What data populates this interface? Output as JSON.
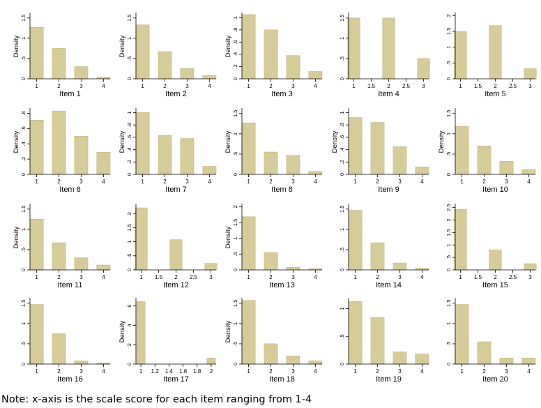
{
  "note": "Note: x-axis is the scale score for each item ranging from 1-4",
  "colors": {
    "bar": "#d6cc9a",
    "bar_stroke": "#c2b781",
    "axis": "#000000"
  },
  "chart_data": [
    {
      "type": "bar",
      "title": "Item 1",
      "xlabel": "Item 1",
      "ylabel": "Density",
      "xlim": [
        0.7,
        4.3
      ],
      "x_ticks": [
        1,
        2,
        3,
        4
      ],
      "x_tick_labels": [
        "1",
        "2",
        "3",
        "4"
      ],
      "ylim": [
        0,
        1.6
      ],
      "y_ticks": [
        0,
        0.5,
        1,
        1.5
      ],
      "y_tick_labels": [
        "0",
        ".5",
        "1",
        "1.5"
      ],
      "bar_width": 0.6,
      "x": [
        1,
        2,
        3,
        4
      ],
      "values": [
        1.27,
        0.75,
        0.3,
        0.04
      ]
    },
    {
      "type": "bar",
      "title": "Item 2",
      "xlabel": "Item 2",
      "ylabel": "Density",
      "xlim": [
        0.7,
        4.3
      ],
      "x_ticks": [
        1,
        2,
        3,
        4
      ],
      "x_tick_labels": [
        "1",
        "2",
        "3",
        "4"
      ],
      "ylim": [
        0,
        1.6
      ],
      "y_ticks": [
        0,
        0.5,
        1,
        1.5
      ],
      "y_tick_labels": [
        "0",
        ".5",
        "1",
        "1.5"
      ],
      "bar_width": 0.6,
      "x": [
        1,
        2,
        3,
        4
      ],
      "values": [
        1.33,
        0.67,
        0.26,
        0.08
      ]
    },
    {
      "type": "bar",
      "title": "Item 3",
      "xlabel": "Item 3",
      "ylabel": "Density",
      "xlim": [
        0.7,
        4.3
      ],
      "x_ticks": [
        1,
        2,
        3,
        4
      ],
      "x_tick_labels": [
        "1",
        "2",
        "3",
        "4"
      ],
      "ylim": [
        0,
        1.06
      ],
      "y_ticks": [
        0,
        0.2,
        0.4,
        0.6,
        0.8,
        1
      ],
      "y_tick_labels": [
        "0",
        ".2",
        ".4",
        ".6",
        ".8",
        "1"
      ],
      "bar_width": 0.6,
      "x": [
        1,
        2,
        3,
        4
      ],
      "values": [
        1.05,
        0.8,
        0.38,
        0.12
      ]
    },
    {
      "type": "bar",
      "title": "Item 4",
      "xlabel": "Item 4",
      "ylabel": "",
      "xlim": [
        0.85,
        3.15
      ],
      "x_ticks": [
        1,
        1.5,
        2,
        2.5,
        3
      ],
      "x_tick_labels": [
        "1",
        "1.5",
        "2",
        "2.5",
        "3"
      ],
      "ylim": [
        0,
        1.6
      ],
      "y_ticks": [
        0,
        0.5,
        1,
        1.5
      ],
      "y_tick_labels": [
        "0",
        ".5",
        "1",
        "1.5"
      ],
      "bar_width": 0.35,
      "x": [
        1,
        2,
        3
      ],
      "values": [
        1.5,
        1.5,
        0.5
      ]
    },
    {
      "type": "bar",
      "title": "Item 5",
      "xlabel": "Item 5",
      "ylabel": "",
      "xlim": [
        0.85,
        3.15
      ],
      "x_ticks": [
        1,
        1.5,
        2,
        2.5,
        3
      ],
      "x_tick_labels": [
        "1",
        "1.5",
        "2",
        "2.5",
        "3"
      ],
      "ylim": [
        0,
        2.05
      ],
      "y_ticks": [
        0,
        0.5,
        1,
        1.5,
        2
      ],
      "y_tick_labels": [
        "0",
        ".5",
        "1",
        "1.5",
        "2"
      ],
      "bar_width": 0.35,
      "x": [
        1,
        2,
        3
      ],
      "values": [
        1.5,
        1.68,
        0.32
      ]
    },
    {
      "type": "bar",
      "title": "Item 6",
      "xlabel": "Item 6",
      "ylabel": "Density",
      "xlim": [
        0.7,
        4.3
      ],
      "x_ticks": [
        1,
        2,
        3,
        4
      ],
      "x_tick_labels": [
        "1",
        "2",
        "3",
        "4"
      ],
      "ylim": [
        0,
        0.85
      ],
      "y_ticks": [
        0,
        0.2,
        0.4,
        0.6,
        0.8
      ],
      "y_tick_labels": [
        "0",
        ".2",
        ".4",
        ".6",
        ".8"
      ],
      "bar_width": 0.6,
      "x": [
        1,
        2,
        3,
        4
      ],
      "values": [
        0.71,
        0.83,
        0.5,
        0.29
      ]
    },
    {
      "type": "bar",
      "title": "Item 7",
      "xlabel": "Item 7",
      "ylabel": "Density",
      "xlim": [
        0.7,
        4.3
      ],
      "x_ticks": [
        1,
        2,
        3,
        4
      ],
      "x_tick_labels": [
        "1",
        "2",
        "3",
        "4"
      ],
      "ylim": [
        0,
        1.05
      ],
      "y_ticks": [
        0,
        0.2,
        0.4,
        0.6,
        0.8,
        1
      ],
      "y_tick_labels": [
        "0",
        ".2",
        ".4",
        ".6",
        ".8",
        "1"
      ],
      "bar_width": 0.6,
      "x": [
        1,
        2,
        3,
        4
      ],
      "values": [
        1,
        0.63,
        0.58,
        0.13
      ]
    },
    {
      "type": "bar",
      "title": "Item 8",
      "xlabel": "Item 8",
      "ylabel": "Density",
      "xlim": [
        0.7,
        4.3
      ],
      "x_ticks": [
        1,
        2,
        3,
        4
      ],
      "x_tick_labels": [
        "1",
        "2",
        "3",
        "4"
      ],
      "ylim": [
        0,
        1.6
      ],
      "y_ticks": [
        0,
        0.5,
        1,
        1.5
      ],
      "y_tick_labels": [
        "0",
        ".5",
        "1",
        "1.5"
      ],
      "bar_width": 0.6,
      "x": [
        1,
        2,
        3,
        4
      ],
      "values": [
        1.27,
        0.55,
        0.47,
        0.07
      ]
    },
    {
      "type": "bar",
      "title": "Item 9",
      "xlabel": "Item 9",
      "ylabel": "Density",
      "xlim": [
        0.7,
        4.3
      ],
      "x_ticks": [
        1,
        2,
        3,
        4
      ],
      "x_tick_labels": [
        "1",
        "2",
        "3",
        "4"
      ],
      "ylim": [
        0,
        1.05
      ],
      "y_ticks": [
        0,
        0.2,
        0.4,
        0.6,
        0.8,
        1
      ],
      "y_tick_labels": [
        "0",
        ".2",
        ".4",
        ".6",
        ".8",
        "1"
      ],
      "bar_width": 0.6,
      "x": [
        1,
        2,
        3,
        4
      ],
      "values": [
        0.92,
        0.84,
        0.45,
        0.12
      ]
    },
    {
      "type": "bar",
      "title": "Item 10",
      "xlabel": "Item 10",
      "ylabel": "Density",
      "xlim": [
        0.7,
        4.3
      ],
      "x_ticks": [
        1,
        2,
        3,
        4
      ],
      "x_tick_labels": [
        "1",
        "2",
        "3",
        "4"
      ],
      "ylim": [
        0,
        1.6
      ],
      "y_ticks": [
        0,
        0.5,
        1,
        1.5
      ],
      "y_tick_labels": [
        "0",
        ".5",
        "1",
        "1.5"
      ],
      "bar_width": 0.6,
      "x": [
        1,
        2,
        3,
        4
      ],
      "values": [
        1.18,
        0.7,
        0.32,
        0.12
      ]
    },
    {
      "type": "bar",
      "title": "Item 11",
      "xlabel": "Item 11",
      "ylabel": "Density",
      "xlim": [
        0.7,
        4.3
      ],
      "x_ticks": [
        1,
        2,
        3,
        4
      ],
      "x_tick_labels": [
        "1",
        "2",
        "3",
        "4"
      ],
      "ylim": [
        0,
        1.6
      ],
      "y_ticks": [
        0,
        0.5,
        1,
        1.5
      ],
      "y_tick_labels": [
        "0",
        ".5",
        "1",
        "1.5"
      ],
      "bar_width": 0.6,
      "x": [
        1,
        2,
        3,
        4
      ],
      "values": [
        1.25,
        0.67,
        0.3,
        0.12
      ]
    },
    {
      "type": "bar",
      "title": "Item 12",
      "xlabel": "Item 12",
      "ylabel": "",
      "xlim": [
        0.85,
        3.15
      ],
      "x_ticks": [
        1,
        1.5,
        2,
        2.5,
        3
      ],
      "x_tick_labels": [
        "1",
        "1.5",
        "2",
        "2.5",
        "3"
      ],
      "ylim": [
        0,
        2.3
      ],
      "y_ticks": [
        0,
        0.5,
        1,
        1.5,
        2
      ],
      "y_tick_labels": [
        "0",
        ".5",
        "1",
        "1.5",
        "2"
      ],
      "bar_width": 0.35,
      "x": [
        1,
        2,
        3
      ],
      "values": [
        2.2,
        1.07,
        0.23
      ]
    },
    {
      "type": "bar",
      "title": "Item 13",
      "xlabel": "Item 13",
      "ylabel": "Density",
      "xlim": [
        0.7,
        4.3
      ],
      "x_ticks": [
        1,
        2,
        3,
        4
      ],
      "x_tick_labels": [
        "1",
        "2",
        "3",
        "4"
      ],
      "ylim": [
        0,
        2.05
      ],
      "y_ticks": [
        0,
        0.5,
        1,
        1.5,
        2
      ],
      "y_tick_labels": [
        "0",
        ".5",
        "1",
        "1.5",
        "2"
      ],
      "bar_width": 0.6,
      "x": [
        1,
        2,
        3,
        4
      ],
      "values": [
        1.68,
        0.55,
        0.08,
        0.04
      ]
    },
    {
      "type": "bar",
      "title": "Item 14",
      "xlabel": "Item 14",
      "ylabel": "",
      "xlim": [
        0.7,
        4.3
      ],
      "x_ticks": [
        1,
        2,
        3,
        4
      ],
      "x_tick_labels": [
        "1",
        "2",
        "3",
        "4"
      ],
      "ylim": [
        0,
        1.6
      ],
      "y_ticks": [
        0,
        0.5,
        1,
        1.5
      ],
      "y_tick_labels": [
        "0",
        ".5",
        "1",
        "1.5"
      ],
      "bar_width": 0.6,
      "x": [
        1,
        2,
        3,
        4
      ],
      "values": [
        1.47,
        0.67,
        0.17,
        0.04
      ]
    },
    {
      "type": "bar",
      "title": "Item 15",
      "xlabel": "Item 15",
      "ylabel": "",
      "xlim": [
        0.85,
        3.15
      ],
      "x_ticks": [
        1,
        1.5,
        2,
        2.5,
        3
      ],
      "x_tick_labels": [
        "1",
        "1.5",
        "2",
        "2.5",
        "3"
      ],
      "ylim": [
        0,
        2.6
      ],
      "y_ticks": [
        0,
        0.5,
        1,
        1.5,
        2,
        2.5
      ],
      "y_tick_labels": [
        "0",
        ".5",
        "1",
        "1.5",
        "2",
        "2.5"
      ],
      "bar_width": 0.35,
      "x": [
        1,
        2,
        3
      ],
      "values": [
        2.43,
        0.8,
        0.25
      ]
    },
    {
      "type": "bar",
      "title": "Item 16",
      "xlabel": "Item 16",
      "ylabel": "",
      "xlim": [
        0.7,
        4.3
      ],
      "x_ticks": [
        1,
        2,
        3,
        4
      ],
      "x_tick_labels": [
        "1",
        "2",
        "3",
        "4"
      ],
      "ylim": [
        0,
        1.6
      ],
      "y_ticks": [
        0,
        0.5,
        1,
        1.5
      ],
      "y_tick_labels": [
        "0",
        ".5",
        "1",
        "1.5"
      ],
      "bar_width": 0.6,
      "x": [
        1,
        2,
        3,
        4
      ],
      "values": [
        1.47,
        0.75,
        0.08,
        0.03
      ]
    },
    {
      "type": "bar",
      "title": "Item 17",
      "xlabel": "Item 17",
      "ylabel": "Density",
      "xlim": [
        0.93,
        2.07
      ],
      "x_ticks": [
        1,
        1.2,
        1.4,
        1.6,
        1.8,
        2
      ],
      "x_tick_labels": [
        "1",
        "1.2",
        "1.4",
        "1.6",
        "1.8",
        "2"
      ],
      "ylim": [
        0,
        6.7
      ],
      "y_ticks": [
        0,
        2,
        4,
        6
      ],
      "y_tick_labels": [
        "0",
        "2",
        "4",
        "6"
      ],
      "bar_width": 0.12,
      "x": [
        1,
        2
      ],
      "values": [
        6.45,
        0.62
      ]
    },
    {
      "type": "bar",
      "title": "Item 18",
      "xlabel": "Item 18",
      "ylabel": "Density",
      "xlim": [
        0.7,
        4.3
      ],
      "x_ticks": [
        1,
        2,
        3,
        4
      ],
      "x_tick_labels": [
        "1",
        "2",
        "3",
        "4"
      ],
      "ylim": [
        0,
        1.6
      ],
      "y_ticks": [
        0,
        0.5,
        1,
        1.5
      ],
      "y_tick_labels": [
        "0",
        ".5",
        "1",
        "1.5"
      ],
      "bar_width": 0.6,
      "x": [
        1,
        2,
        3,
        4
      ],
      "values": [
        1.57,
        0.5,
        0.2,
        0.08
      ]
    },
    {
      "type": "bar",
      "title": "Item 19",
      "xlabel": "Item 19",
      "ylabel": "",
      "xlim": [
        0.7,
        4.3
      ],
      "x_ticks": [
        1,
        2,
        3,
        4
      ],
      "x_tick_labels": [
        "1",
        "2",
        "3",
        "4"
      ],
      "ylim": [
        0,
        1.17
      ],
      "y_ticks": [
        0,
        0.5,
        1
      ],
      "y_tick_labels": [
        "0",
        ".5",
        "1"
      ],
      "bar_width": 0.6,
      "x": [
        1,
        2,
        3,
        4
      ],
      "values": [
        1.13,
        0.84,
        0.22,
        0.18
      ]
    },
    {
      "type": "bar",
      "title": "Item 20",
      "xlabel": "Item 20",
      "ylabel": "",
      "xlim": [
        0.7,
        4.3
      ],
      "x_ticks": [
        1,
        2,
        3,
        4
      ],
      "x_tick_labels": [
        "1",
        "2",
        "3",
        "4"
      ],
      "ylim": [
        0,
        1.6
      ],
      "y_ticks": [
        0,
        0.5,
        1,
        1.5
      ],
      "y_tick_labels": [
        "0",
        ".5",
        "1",
        "1.5"
      ],
      "bar_width": 0.6,
      "x": [
        1,
        2,
        3,
        4
      ],
      "values": [
        1.47,
        0.55,
        0.15,
        0.15
      ]
    }
  ]
}
